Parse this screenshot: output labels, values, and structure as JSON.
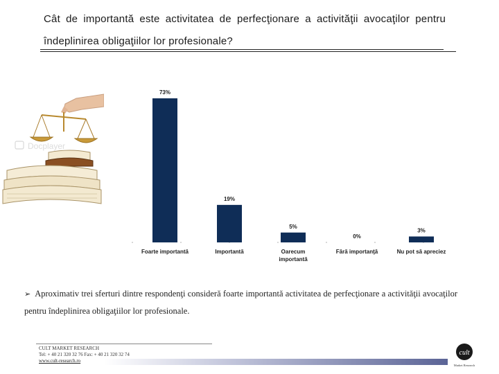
{
  "header": {
    "title": "Cât de importantă este activitatea de perfecţionare a activităţii avocaţilor pentru îndeplinirea obligaţiilor lor profesionale?"
  },
  "chart_data": {
    "type": "bar",
    "categories": [
      "Foarte importantă",
      "Importantă",
      "Oarecum importantă",
      "Fără importanţă",
      "Nu pot să apreciez"
    ],
    "values": [
      73,
      19,
      5,
      0,
      3
    ],
    "value_labels": [
      "73%",
      "19%",
      "5%",
      "0%",
      "3%"
    ],
    "ylim": [
      0,
      80
    ],
    "grid": false,
    "bar_color": "#0f2d57"
  },
  "summary": {
    "bullet_icon": "arrow-bullet-icon",
    "text": "Aproximativ trei sferturi dintre respondenţi consideră foarte importantă activitatea de perfecţionare a activităţii avocaţilor pentru îndeplinirea obligaţiilor lor profesionale."
  },
  "footer": {
    "company": "CULT MARKET RESEARCH",
    "contact": "Tel: + 40 21 320 32 76 Fax: + 40 21 320 32 74",
    "website": "www.cult-research.ro",
    "logo_text": "Market Research"
  },
  "illustration": {
    "icon": "justice-scale-books-icon",
    "watermark": "Docplayer"
  }
}
